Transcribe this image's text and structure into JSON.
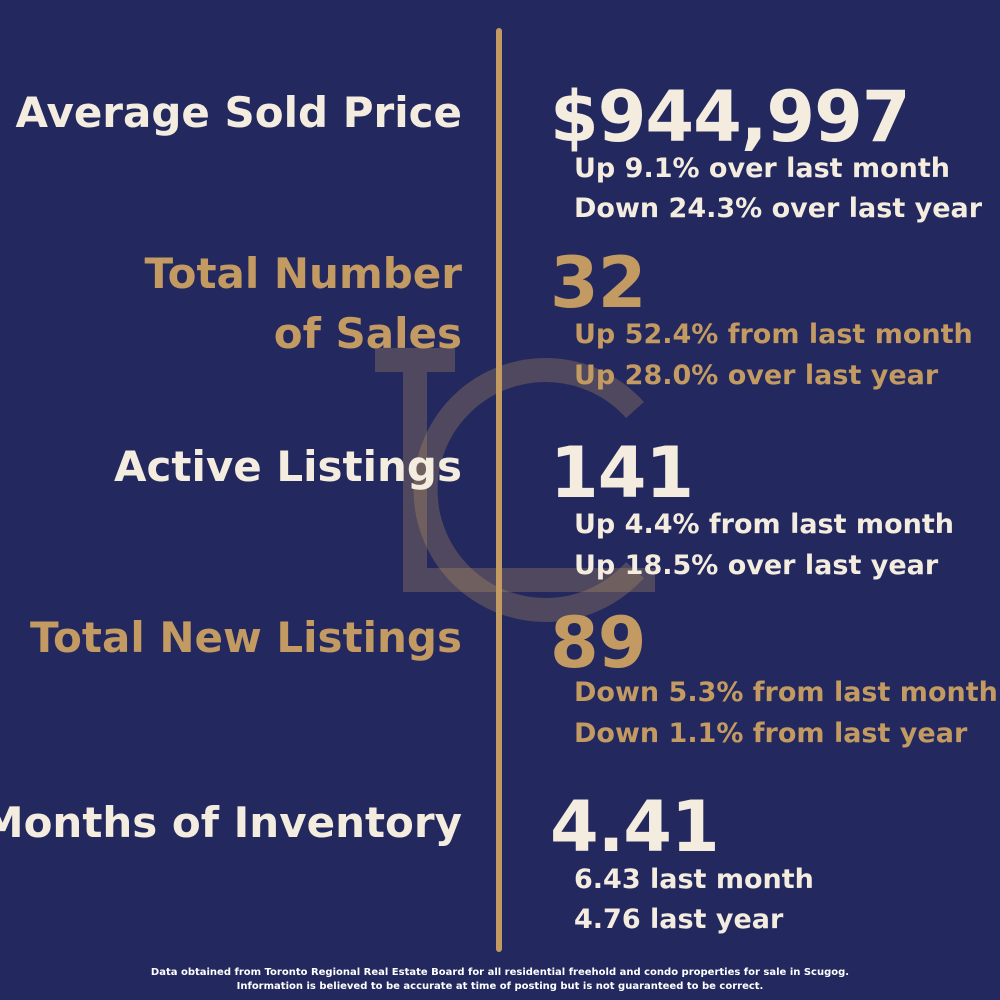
{
  "colors": {
    "background": "#23295e",
    "gold": "#c29a62",
    "light": "#f3ecdf"
  },
  "stats": [
    {
      "label": "Average Sold Price",
      "value": "$944,997",
      "line1": "Up 9.1% over last month",
      "line2": "Down 24.3% over last year"
    },
    {
      "label_line1": "Total Number",
      "label_line2": "of Sales",
      "value": "32",
      "line1": "Up 52.4% from last month",
      "line2": "Up 28.0% over last year"
    },
    {
      "label": "Active Listings",
      "value": "141",
      "line1": "Up 4.4% from last month",
      "line2": "Up 18.5% over last year"
    },
    {
      "label": "Total New Listings",
      "value": "89",
      "line1": "Down 5.3% from last month",
      "line2": "Down 1.1% from last year"
    },
    {
      "label": "Months of Inventory",
      "value": "4.41",
      "line1": "6.43 last month",
      "line2": "4.76 last year"
    }
  ],
  "footer": {
    "line1": "Data obtained from Toronto Regional Real Estate Board for all residential freehold and condo properties for sale in Scugog.",
    "line2": "Information is believed to be accurate at time of posting but is not guaranteed to be correct."
  }
}
